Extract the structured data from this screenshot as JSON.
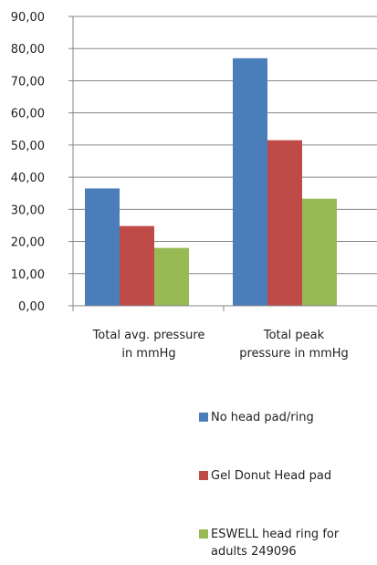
{
  "chart_data": {
    "type": "bar",
    "categories": [
      "Total avg. pressure\nin mmHg",
      "Total peak\npressure  in mmHg"
    ],
    "series": [
      {
        "name": "No head pad/ring",
        "values": [
          36.5,
          77.0
        ],
        "color": "#4a7ebb"
      },
      {
        "name": "Gel Donut Head pad",
        "values": [
          24.8,
          51.5
        ],
        "color": "#be4b48"
      },
      {
        "name": "ESWELL head ring for\nadults 249096",
        "values": [
          18.0,
          33.3
        ],
        "color": "#98b954"
      }
    ],
    "ylim": [
      0,
      90
    ],
    "ytick_step": 10,
    "ytick_labels": [
      "0,00",
      "10,00",
      "20,00",
      "30,00",
      "40,00",
      "50,00",
      "60,00",
      "70,00",
      "80,00",
      "90,00"
    ],
    "grid": true,
    "legend_position": "bottom-right",
    "title": "",
    "xlabel": "",
    "ylabel": ""
  }
}
